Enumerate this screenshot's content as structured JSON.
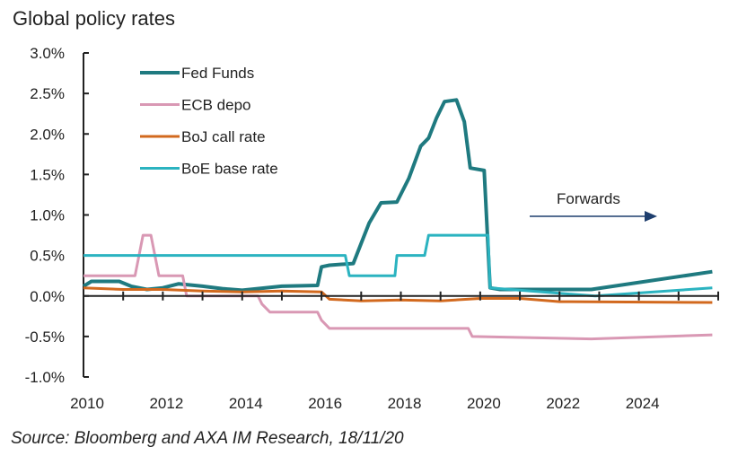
{
  "chart_data": {
    "type": "line",
    "title": "Global policy rates",
    "source": "Source: Bloomberg and AXA IM Research, 18/11/20",
    "annotation": "Forwards",
    "xlim": [
      2010,
      2026
    ],
    "ylim": [
      -1.0,
      3.0
    ],
    "x_ticks": [
      "2010",
      "2012",
      "2014",
      "2016",
      "2018",
      "2020",
      "2022",
      "2024"
    ],
    "y_ticks": [
      "3.0%",
      "2.5%",
      "2.0%",
      "1.5%",
      "1.0%",
      "0.5%",
      "0.0%",
      "-0.5%",
      "-1.0%"
    ],
    "legend_position": "top-left",
    "grid": false,
    "series": [
      {
        "name": "Fed Funds",
        "color": "#1f7a80",
        "points": [
          [
            2010,
            0.12
          ],
          [
            2010.2,
            0.18
          ],
          [
            2010.9,
            0.18
          ],
          [
            2011.2,
            0.12
          ],
          [
            2011.6,
            0.08
          ],
          [
            2012.0,
            0.1
          ],
          [
            2012.4,
            0.15
          ],
          [
            2013.0,
            0.12
          ],
          [
            2013.5,
            0.09
          ],
          [
            2014.0,
            0.07
          ],
          [
            2015.0,
            0.12
          ],
          [
            2015.9,
            0.13
          ],
          [
            2016.0,
            0.36
          ],
          [
            2016.2,
            0.38
          ],
          [
            2016.8,
            0.4
          ],
          [
            2017.0,
            0.65
          ],
          [
            2017.2,
            0.9
          ],
          [
            2017.5,
            1.15
          ],
          [
            2017.9,
            1.16
          ],
          [
            2018.2,
            1.45
          ],
          [
            2018.5,
            1.85
          ],
          [
            2018.7,
            1.95
          ],
          [
            2018.9,
            2.2
          ],
          [
            2019.1,
            2.4
          ],
          [
            2019.4,
            2.42
          ],
          [
            2019.6,
            2.15
          ],
          [
            2019.75,
            1.58
          ],
          [
            2020.1,
            1.55
          ],
          [
            2020.25,
            0.1
          ],
          [
            2020.5,
            0.08
          ],
          [
            2022.8,
            0.08
          ],
          [
            2025.85,
            0.3
          ]
        ]
      },
      {
        "name": "ECB depo",
        "color": "#d998b4",
        "points": [
          [
            2010,
            0.25
          ],
          [
            2011.3,
            0.25
          ],
          [
            2011.5,
            0.75
          ],
          [
            2011.7,
            0.75
          ],
          [
            2011.9,
            0.25
          ],
          [
            2012.5,
            0.25
          ],
          [
            2012.6,
            0.0
          ],
          [
            2014.4,
            0.0
          ],
          [
            2014.5,
            -0.1
          ],
          [
            2014.7,
            -0.2
          ],
          [
            2015.9,
            -0.2
          ],
          [
            2016.0,
            -0.3
          ],
          [
            2016.2,
            -0.4
          ],
          [
            2019.7,
            -0.4
          ],
          [
            2019.8,
            -0.5
          ],
          [
            2022.8,
            -0.53
          ],
          [
            2025.85,
            -0.48
          ]
        ]
      },
      {
        "name": "BoJ call rate",
        "color": "#d2691e",
        "points": [
          [
            2010,
            0.1
          ],
          [
            2011,
            0.08
          ],
          [
            2012,
            0.08
          ],
          [
            2013,
            0.06
          ],
          [
            2014,
            0.05
          ],
          [
            2015,
            0.06
          ],
          [
            2016.0,
            0.05
          ],
          [
            2016.2,
            -0.04
          ],
          [
            2017,
            -0.06
          ],
          [
            2018,
            -0.05
          ],
          [
            2019,
            -0.06
          ],
          [
            2020,
            -0.03
          ],
          [
            2021,
            -0.03
          ],
          [
            2022,
            -0.07
          ],
          [
            2025.85,
            -0.08
          ]
        ]
      },
      {
        "name": "BoE base rate",
        "color": "#2bb3c0",
        "points": [
          [
            2010,
            0.5
          ],
          [
            2016.6,
            0.5
          ],
          [
            2016.7,
            0.25
          ],
          [
            2017.85,
            0.25
          ],
          [
            2017.9,
            0.5
          ],
          [
            2018.6,
            0.5
          ],
          [
            2018.7,
            0.75
          ],
          [
            2020.2,
            0.75
          ],
          [
            2020.25,
            0.1
          ],
          [
            2022.9,
            0.0
          ],
          [
            2025.85,
            0.1
          ]
        ]
      }
    ]
  }
}
